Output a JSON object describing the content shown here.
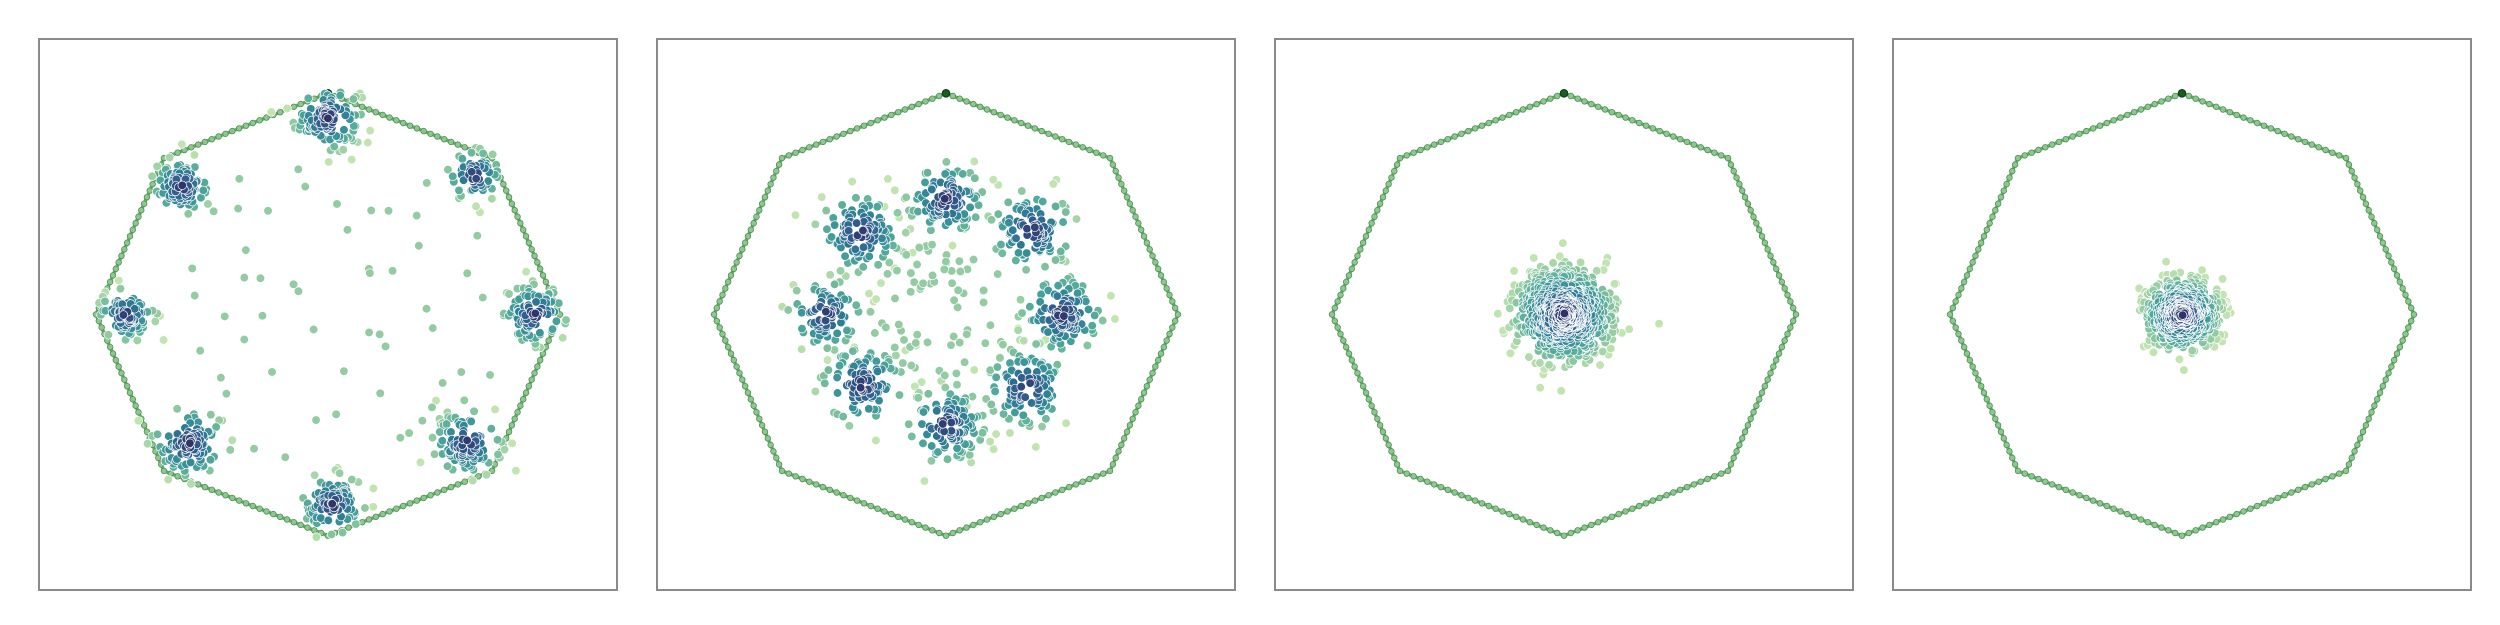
{
  "chart_data": [
    {
      "type": "scatter",
      "title": "",
      "xlabel": "",
      "ylabel": "",
      "grid": false,
      "xlim": [
        -1.25,
        1.25
      ],
      "ylim": [
        -1.25,
        1.25
      ],
      "boundary": {
        "shape": "octagon",
        "vertices": 8,
        "radius": 1.0,
        "color": "#6aab6e",
        "apex_color": "#1a5e1f"
      },
      "colormap": [
        "#c2e4b0",
        "#85c49e",
        "#48a39a",
        "#2f7f96",
        "#325a8c",
        "#2e2e64"
      ],
      "series": [
        {
          "clusters": [
            {
              "center": [
                0.0,
                0.89
              ],
              "count": 110,
              "spread": 0.07
            },
            {
              "center": [
                0.63,
                0.63
              ],
              "count": 60,
              "spread": 0.055
            },
            {
              "center": [
                0.89,
                0.0
              ],
              "count": 95,
              "spread": 0.065
            },
            {
              "center": [
                0.6,
                -0.58
              ],
              "count": 100,
              "spread": 0.07
            },
            {
              "center": [
                0.02,
                -0.86
              ],
              "count": 90,
              "spread": 0.065
            },
            {
              "center": [
                -0.6,
                -0.58
              ],
              "count": 100,
              "spread": 0.075
            },
            {
              "center": [
                -0.87,
                0.0
              ],
              "count": 80,
              "spread": 0.055
            },
            {
              "center": [
                -0.63,
                0.58
              ],
              "count": 90,
              "spread": 0.06
            }
          ],
          "outliers": 55
        }
      ]
    },
    {
      "type": "scatter",
      "title": "",
      "xlabel": "",
      "ylabel": "",
      "grid": false,
      "xlim": [
        -1.25,
        1.25
      ],
      "ylim": [
        -1.25,
        1.25
      ],
      "boundary": {
        "shape": "octagon",
        "vertices": 8,
        "radius": 1.0,
        "color": "#6aab6e",
        "apex_color": "#1a5e1f"
      },
      "colormap": [
        "#c2e4b0",
        "#85c49e",
        "#48a39a",
        "#2f7f96",
        "#325a8c",
        "#2e2e64"
      ],
      "series": [
        {
          "clusters": [
            {
              "center": [
                0.0,
                0.52
              ],
              "count": 110,
              "spread": 0.08
            },
            {
              "center": [
                0.37,
                0.38
              ],
              "count": 100,
              "spread": 0.085
            },
            {
              "center": [
                0.5,
                0.0
              ],
              "count": 110,
              "spread": 0.085
            },
            {
              "center": [
                0.35,
                -0.33
              ],
              "count": 100,
              "spread": 0.085
            },
            {
              "center": [
                0.0,
                -0.5
              ],
              "count": 110,
              "spread": 0.08
            },
            {
              "center": [
                -0.36,
                -0.32
              ],
              "count": 100,
              "spread": 0.085
            },
            {
              "center": [
                -0.52,
                0.0
              ],
              "count": 90,
              "spread": 0.075
            },
            {
              "center": [
                -0.37,
                0.37
              ],
              "count": 110,
              "spread": 0.085
            }
          ],
          "outliers": 70,
          "outlier_radius": 0.33
        }
      ]
    },
    {
      "type": "scatter",
      "title": "",
      "xlabel": "",
      "ylabel": "",
      "grid": false,
      "xlim": [
        -1.25,
        1.25
      ],
      "ylim": [
        -1.25,
        1.25
      ],
      "boundary": {
        "shape": "octagon",
        "vertices": 8,
        "radius": 1.0,
        "color": "#6aab6e",
        "apex_color": "#1a5e1f"
      },
      "colormap": [
        "#c2e4b0",
        "#85c49e",
        "#48a39a",
        "#2f7f96",
        "#325a8c",
        "#2e2e64"
      ],
      "series": [
        {
          "clusters": [
            {
              "center": [
                0.0,
                0.0
              ],
              "count": 850,
              "spread": 0.1
            }
          ],
          "outliers": 0
        }
      ]
    },
    {
      "type": "scatter",
      "title": "",
      "xlabel": "",
      "ylabel": "",
      "grid": false,
      "xlim": [
        -1.25,
        1.25
      ],
      "ylim": [
        -1.25,
        1.25
      ],
      "boundary": {
        "shape": "octagon",
        "vertices": 8,
        "radius": 1.0,
        "color": "#6aab6e",
        "apex_color": "#1a5e1f"
      },
      "colormap": [
        "#c2e4b0",
        "#85c49e",
        "#48a39a",
        "#2f7f96",
        "#325a8c",
        "#2e2e64"
      ],
      "series": [
        {
          "clusters": [
            {
              "center": [
                0.0,
                0.0
              ],
              "count": 650,
              "spread": 0.075
            }
          ],
          "outliers": 0
        }
      ]
    }
  ]
}
